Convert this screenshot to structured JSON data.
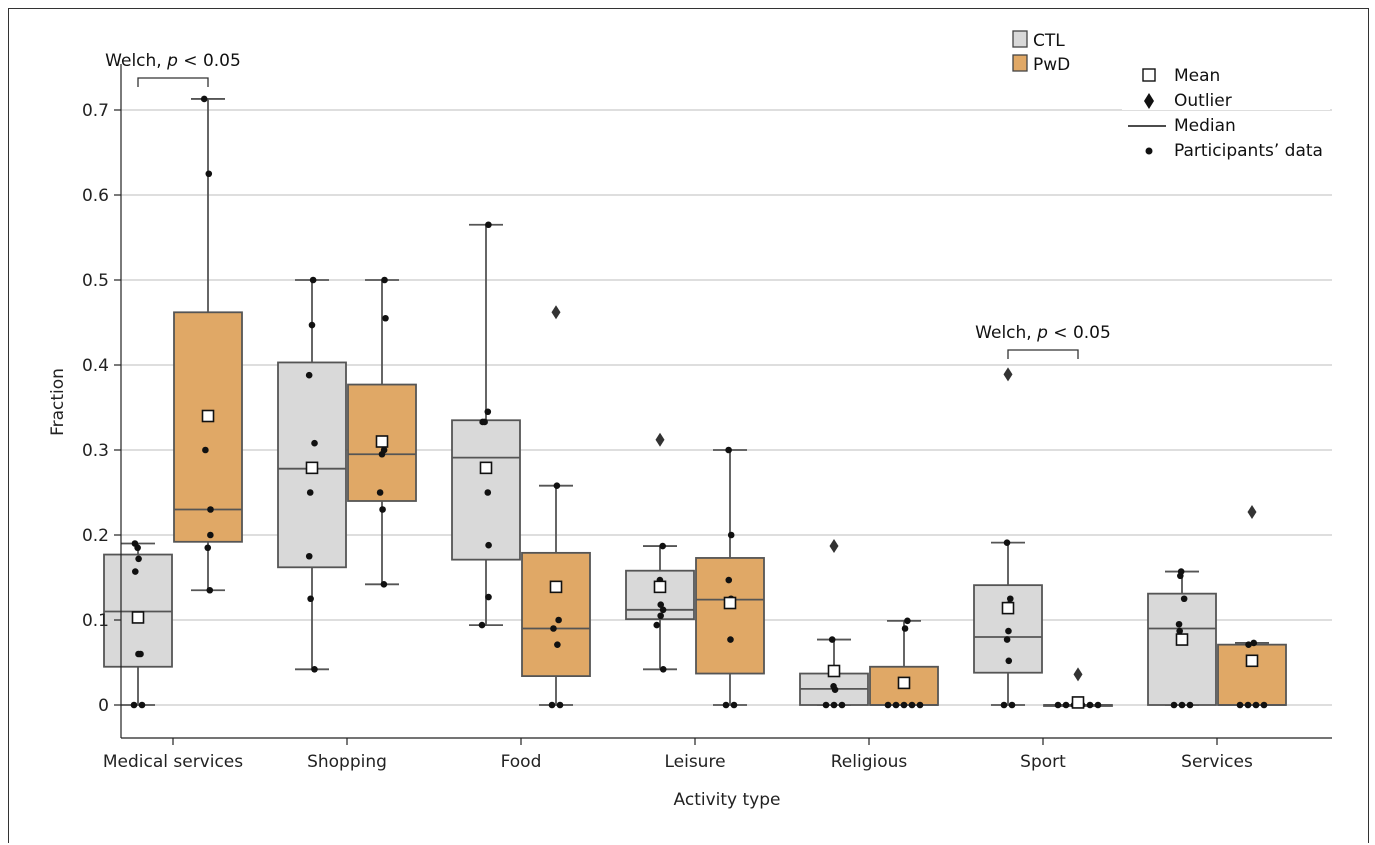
{
  "chart_data": {
    "type": "box",
    "xlabel": "Activity type",
    "ylabel": "Fraction",
    "ylim": [
      -0.04,
      0.76
    ],
    "yticks": [
      0,
      0.1,
      0.2,
      0.3,
      0.4,
      0.5,
      0.6,
      0.7
    ],
    "ytick_labels": [
      "0",
      "0.1",
      "0.2",
      "0.3",
      "0.4",
      "0.5",
      "0.6",
      "0.7"
    ],
    "grid": "horizontal",
    "categories": [
      "Medical services",
      "Shopping",
      "Food",
      "Leisure",
      "Religious",
      "Sport",
      "Services"
    ],
    "series_colors": {
      "CTL": "#d9d9d9",
      "PwD": "#e0a866"
    },
    "legend": {
      "groups": [
        {
          "name": "CTL",
          "color": "#d9d9d9"
        },
        {
          "name": "PwD",
          "color": "#e0a866"
        }
      ],
      "markers": [
        {
          "marker": "square",
          "label": "Mean"
        },
        {
          "marker": "diamond",
          "label": "Outlier"
        },
        {
          "marker": "line",
          "label": "Median"
        },
        {
          "marker": "dot",
          "label": "Participants’ data"
        }
      ],
      "placement": "top-right"
    },
    "annotations": [
      {
        "prefix": "Welch, ",
        "italic": "p",
        "suffix": " < 0.05",
        "category": "Medical services"
      },
      {
        "prefix": "Welch, ",
        "italic": "p",
        "suffix": " < 0.05",
        "category": "Sport"
      }
    ],
    "boxes": [
      {
        "category": "Medical services",
        "group": "CTL",
        "whislo": 0.0,
        "q1": 0.045,
        "med": 0.11,
        "q3": 0.177,
        "whishi": 0.19,
        "mean": 0.103,
        "points": [
          0,
          0,
          0.06,
          0.06,
          0.157,
          0.172,
          0.185,
          0.19
        ],
        "outliers": []
      },
      {
        "category": "Medical services",
        "group": "PwD",
        "whislo": 0.135,
        "q1": 0.192,
        "med": 0.23,
        "q3": 0.462,
        "whishi": 0.713,
        "mean": 0.34,
        "points": [
          0.135,
          0.185,
          0.2,
          0.23,
          0.3,
          0.625,
          0.713
        ],
        "outliers": []
      },
      {
        "category": "Shopping",
        "group": "CTL",
        "whislo": 0.042,
        "q1": 0.162,
        "med": 0.278,
        "q3": 0.403,
        "whishi": 0.5,
        "mean": 0.279,
        "points": [
          0.042,
          0.125,
          0.175,
          0.25,
          0.308,
          0.388,
          0.447,
          0.5
        ],
        "outliers": []
      },
      {
        "category": "Shopping",
        "group": "PwD",
        "whislo": 0.142,
        "q1": 0.24,
        "med": 0.295,
        "q3": 0.377,
        "whishi": 0.5,
        "mean": 0.31,
        "points": [
          0.142,
          0.25,
          0.23,
          0.295,
          0.3,
          0.455,
          0.5
        ],
        "outliers": []
      },
      {
        "category": "Food",
        "group": "CTL",
        "whislo": 0.094,
        "q1": 0.171,
        "med": 0.291,
        "q3": 0.335,
        "whishi": 0.565,
        "mean": 0.279,
        "points": [
          0.094,
          0.127,
          0.188,
          0.25,
          0.333,
          0.333,
          0.345,
          0.565
        ],
        "outliers": []
      },
      {
        "category": "Food",
        "group": "PwD",
        "whislo": 0.0,
        "q1": 0.034,
        "med": 0.09,
        "q3": 0.179,
        "whishi": 0.258,
        "mean": 0.139,
        "points": [
          0,
          0,
          0.071,
          0.09,
          0.1,
          0.258
        ],
        "outliers": [
          0.462
        ]
      },
      {
        "category": "Leisure",
        "group": "CTL",
        "whislo": 0.042,
        "q1": 0.101,
        "med": 0.112,
        "q3": 0.158,
        "whishi": 0.187,
        "mean": 0.139,
        "points": [
          0.042,
          0.094,
          0.105,
          0.112,
          0.118,
          0.147,
          0.187
        ],
        "outliers": [
          0.312
        ]
      },
      {
        "category": "Leisure",
        "group": "PwD",
        "whislo": 0.0,
        "q1": 0.037,
        "med": 0.124,
        "q3": 0.173,
        "whishi": 0.3,
        "mean": 0.12,
        "points": [
          0,
          0,
          0.077,
          0.125,
          0.147,
          0.2,
          0.3
        ],
        "outliers": []
      },
      {
        "category": "Religious",
        "group": "CTL",
        "whislo": 0.0,
        "q1": 0.0,
        "med": 0.019,
        "q3": 0.037,
        "whishi": 0.077,
        "mean": 0.04,
        "points": [
          0,
          0,
          0,
          0.018,
          0.022,
          0.077
        ],
        "outliers": [
          0.187
        ]
      },
      {
        "category": "Religious",
        "group": "PwD",
        "whislo": 0.0,
        "q1": 0.0,
        "med": 0.0,
        "q3": 0.045,
        "whishi": 0.099,
        "mean": 0.026,
        "points": [
          0,
          0,
          0,
          0,
          0,
          0.09,
          0.099
        ],
        "outliers": []
      },
      {
        "category": "Sport",
        "group": "CTL",
        "whislo": 0.0,
        "q1": 0.038,
        "med": 0.08,
        "q3": 0.141,
        "whishi": 0.191,
        "mean": 0.114,
        "points": [
          0,
          0,
          0.052,
          0.077,
          0.087,
          0.118,
          0.125,
          0.191
        ],
        "outliers": [
          0.389
        ]
      },
      {
        "category": "Sport",
        "group": "PwD",
        "whislo": 0.0,
        "q1": 0.0,
        "med": 0.0,
        "q3": 0.0,
        "whishi": 0.0,
        "mean": 0.003,
        "points": [
          0,
          0,
          0,
          0,
          0,
          0
        ],
        "outliers": [
          0.036
        ]
      },
      {
        "category": "Services",
        "group": "CTL",
        "whislo": 0.0,
        "q1": 0.0,
        "med": 0.09,
        "q3": 0.131,
        "whishi": 0.157,
        "mean": 0.077,
        "points": [
          0,
          0,
          0,
          0.087,
          0.095,
          0.125,
          0.152,
          0.157
        ],
        "outliers": []
      },
      {
        "category": "Services",
        "group": "PwD",
        "whislo": 0.0,
        "q1": 0.0,
        "med": 0.0,
        "q3": 0.071,
        "whishi": 0.073,
        "mean": 0.052,
        "points": [
          0,
          0,
          0,
          0,
          0.071,
          0.073
        ],
        "outliers": [
          0.227
        ]
      }
    ]
  }
}
